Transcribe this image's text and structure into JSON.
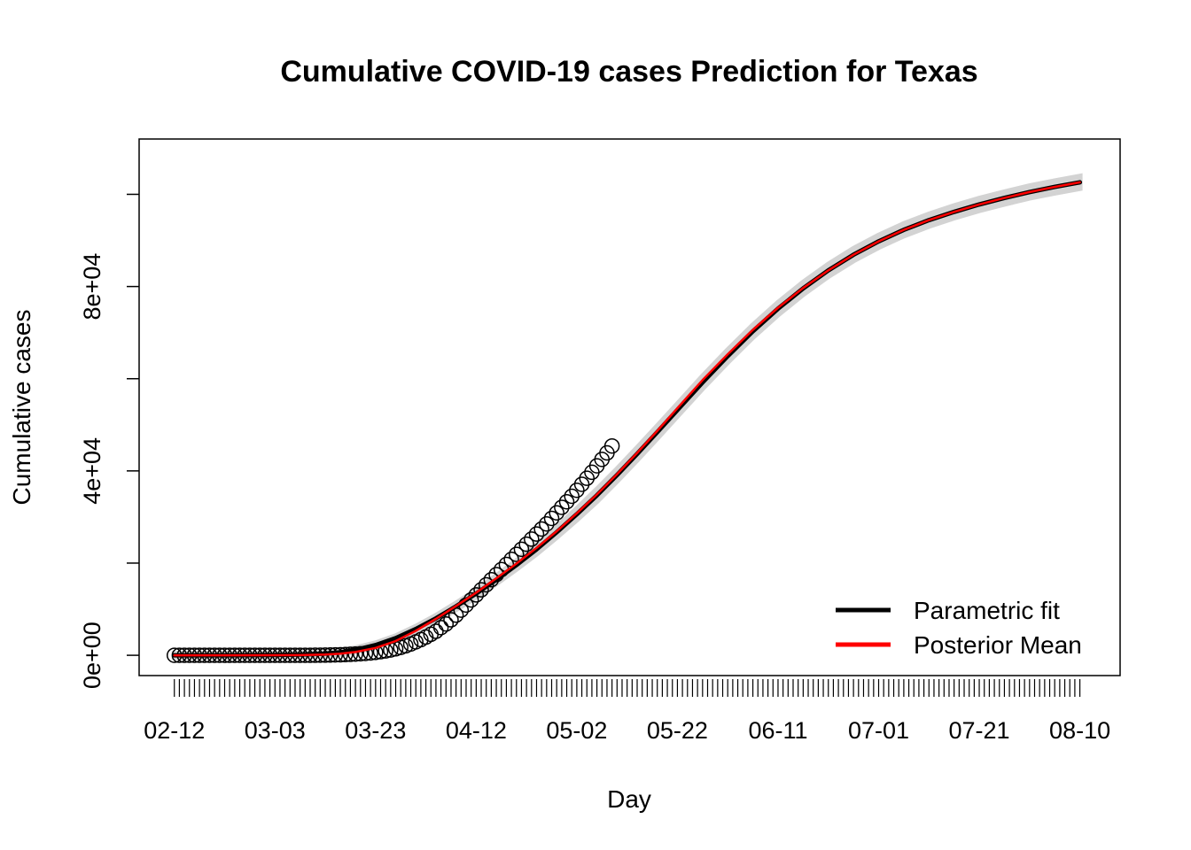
{
  "chart_data": {
    "type": "line",
    "title": "Cumulative COVID-19 cases Prediction for Texas",
    "xlabel": "Day",
    "ylabel": "Cumulative cases",
    "x_start": "02-12",
    "x_days": 181,
    "xlim_days": [
      -7,
      188
    ],
    "ylim": [
      -4400,
      112000
    ],
    "x_ticks": [
      {
        "day": 0,
        "label": "02-12"
      },
      {
        "day": 20,
        "label": "03-03"
      },
      {
        "day": 40,
        "label": "03-23"
      },
      {
        "day": 60,
        "label": "04-12"
      },
      {
        "day": 80,
        "label": "05-02"
      },
      {
        "day": 100,
        "label": "05-22"
      },
      {
        "day": 120,
        "label": "06-11"
      },
      {
        "day": 140,
        "label": "07-01"
      },
      {
        "day": 160,
        "label": "07-21"
      },
      {
        "day": 180,
        "label": "08-10"
      }
    ],
    "y_ticks": [
      {
        "value": 0,
        "label": "0e+00"
      },
      {
        "value": 20000,
        "label": ""
      },
      {
        "value": 40000,
        "label": "4e+04"
      },
      {
        "value": 60000,
        "label": ""
      },
      {
        "value": 80000,
        "label": "8e+04"
      },
      {
        "value": 100000,
        "label": ""
      }
    ],
    "observed": {
      "day_start": 0,
      "cases": [
        0,
        0,
        0,
        0,
        0,
        0,
        0,
        0,
        0,
        0,
        0,
        0,
        0,
        0,
        0,
        0,
        0,
        0,
        0,
        0,
        0,
        0,
        0,
        0,
        0,
        0,
        1,
        4,
        10,
        20,
        40,
        60,
        80,
        110,
        150,
        200,
        260,
        330,
        410,
        510,
        630,
        780,
        950,
        1150,
        1400,
        1700,
        2050,
        2450,
        2900,
        3400,
        3950,
        4550,
        5200,
        6000,
        6800,
        7700,
        8700,
        9800,
        10900,
        12000,
        13100,
        14200,
        15300,
        16400,
        17500,
        18600,
        19700,
        20800,
        21900,
        23000,
        24100,
        25200,
        26300,
        27400,
        28500,
        29700,
        30900,
        32100,
        33300,
        34500,
        35800,
        37100,
        38400,
        39700,
        41100,
        42500,
        43900,
        45400
      ]
    },
    "series": [
      {
        "name": "Parametric fit",
        "color": "#000000",
        "x": [
          0,
          10,
          20,
          25,
          30,
          33,
          36,
          40,
          44,
          48,
          52,
          56,
          60,
          64,
          68,
          72,
          76,
          80,
          84,
          88,
          92,
          96,
          100,
          105,
          110,
          115,
          120,
          125,
          130,
          135,
          140,
          145,
          150,
          155,
          160,
          165,
          170,
          175,
          180
        ],
        "y": [
          0,
          0,
          50,
          150,
          350,
          650,
          1150,
          2200,
          3700,
          5700,
          8000,
          10600,
          13400,
          16400,
          19600,
          23000,
          26700,
          30600,
          34700,
          39100,
          43700,
          48400,
          53200,
          59200,
          64900,
          70300,
          75200,
          79600,
          83500,
          86900,
          89800,
          92300,
          94400,
          96200,
          97800,
          99200,
          100500,
          101600,
          102600
        ]
      },
      {
        "name": "Posterior Mean",
        "color": "#ff0000",
        "x": [
          0,
          10,
          20,
          25,
          30,
          33,
          36,
          40,
          44,
          48,
          52,
          56,
          60,
          64,
          68,
          72,
          76,
          80,
          84,
          88,
          92,
          96,
          100,
          105,
          110,
          115,
          120,
          125,
          130,
          135,
          140,
          145,
          150,
          155,
          160,
          165,
          170,
          175,
          180
        ],
        "y": [
          0,
          0,
          10,
          40,
          150,
          350,
          700,
          1600,
          3100,
          5300,
          7900,
          10700,
          13600,
          16700,
          19900,
          23300,
          26900,
          30800,
          34900,
          39300,
          43900,
          48700,
          53600,
          59700,
          65300,
          70600,
          75400,
          79700,
          83500,
          86900,
          89800,
          92300,
          94400,
          96200,
          97800,
          99200,
          100500,
          101600,
          102600
        ]
      }
    ],
    "band": {
      "color": "#d3d3d3",
      "width_cases": 1300
    },
    "legend": {
      "position": "bottom-right",
      "entries": [
        {
          "label": "Parametric fit",
          "color": "#000000"
        },
        {
          "label": "Posterior Mean",
          "color": "#ff0000"
        }
      ]
    }
  }
}
